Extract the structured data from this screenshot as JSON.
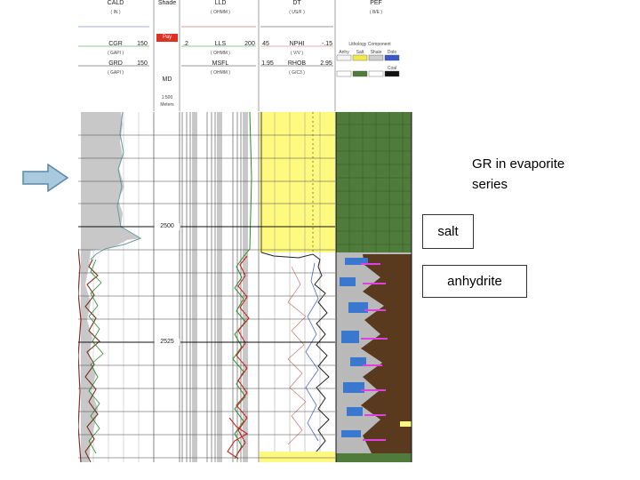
{
  "headers": {
    "track1": {
      "curve1": "CALD",
      "unit1": "( IN )",
      "curve2": "CGR",
      "unit2": "( GAPI )",
      "curve3": "GRD",
      "unit3": "( GAPI )",
      "scale_right": "150"
    },
    "depth": {
      "label": "MD",
      "shade": "Shade",
      "pay": "Pay",
      "scale_text": "1:500",
      "unit": "Meters"
    },
    "track2": {
      "curve1": "LLD",
      "unit1": "( OHMM )",
      "curve2": "LLS",
      "unit2": "( OHMM )",
      "curve3": "MSFL",
      "unit3": "( OHMM )",
      "scale_left": ".2",
      "scale_right": "200"
    },
    "track3": {
      "curve1": "DT",
      "unit1": "( US/F )",
      "curve2": "NPHI",
      "unit2": "( V/V )",
      "curve3": "RHOB",
      "unit3": "( G/C3 )",
      "scale_left": "45",
      "scale_right": "-.15",
      "scale_left3": "1.95",
      "scale_right3": "2.95"
    },
    "track4": {
      "curve1": "PEF",
      "unit1": "( B/E )",
      "legend_title": "Lithology Component",
      "legend_items": [
        "Anhy",
        "Salt",
        "Shale",
        "Dolo",
        "Coal"
      ]
    }
  },
  "depth_marks": [
    "2500",
    "2525"
  ],
  "annotation": {
    "caption": "GR in evaporite series",
    "salt_label": "salt",
    "anhydrite_label": "anhydrite"
  },
  "colors": {
    "arrow_fill": "#a9c9de",
    "arrow_stroke": "#5a87a8",
    "salt_yellow": "#fff980",
    "lithology_green": "#4f7c3a",
    "anhydrite_brown": "#5a3a1f",
    "gamma_gray": "#c8c8c8"
  },
  "icons": {
    "arrow": "right-arrow-icon"
  }
}
